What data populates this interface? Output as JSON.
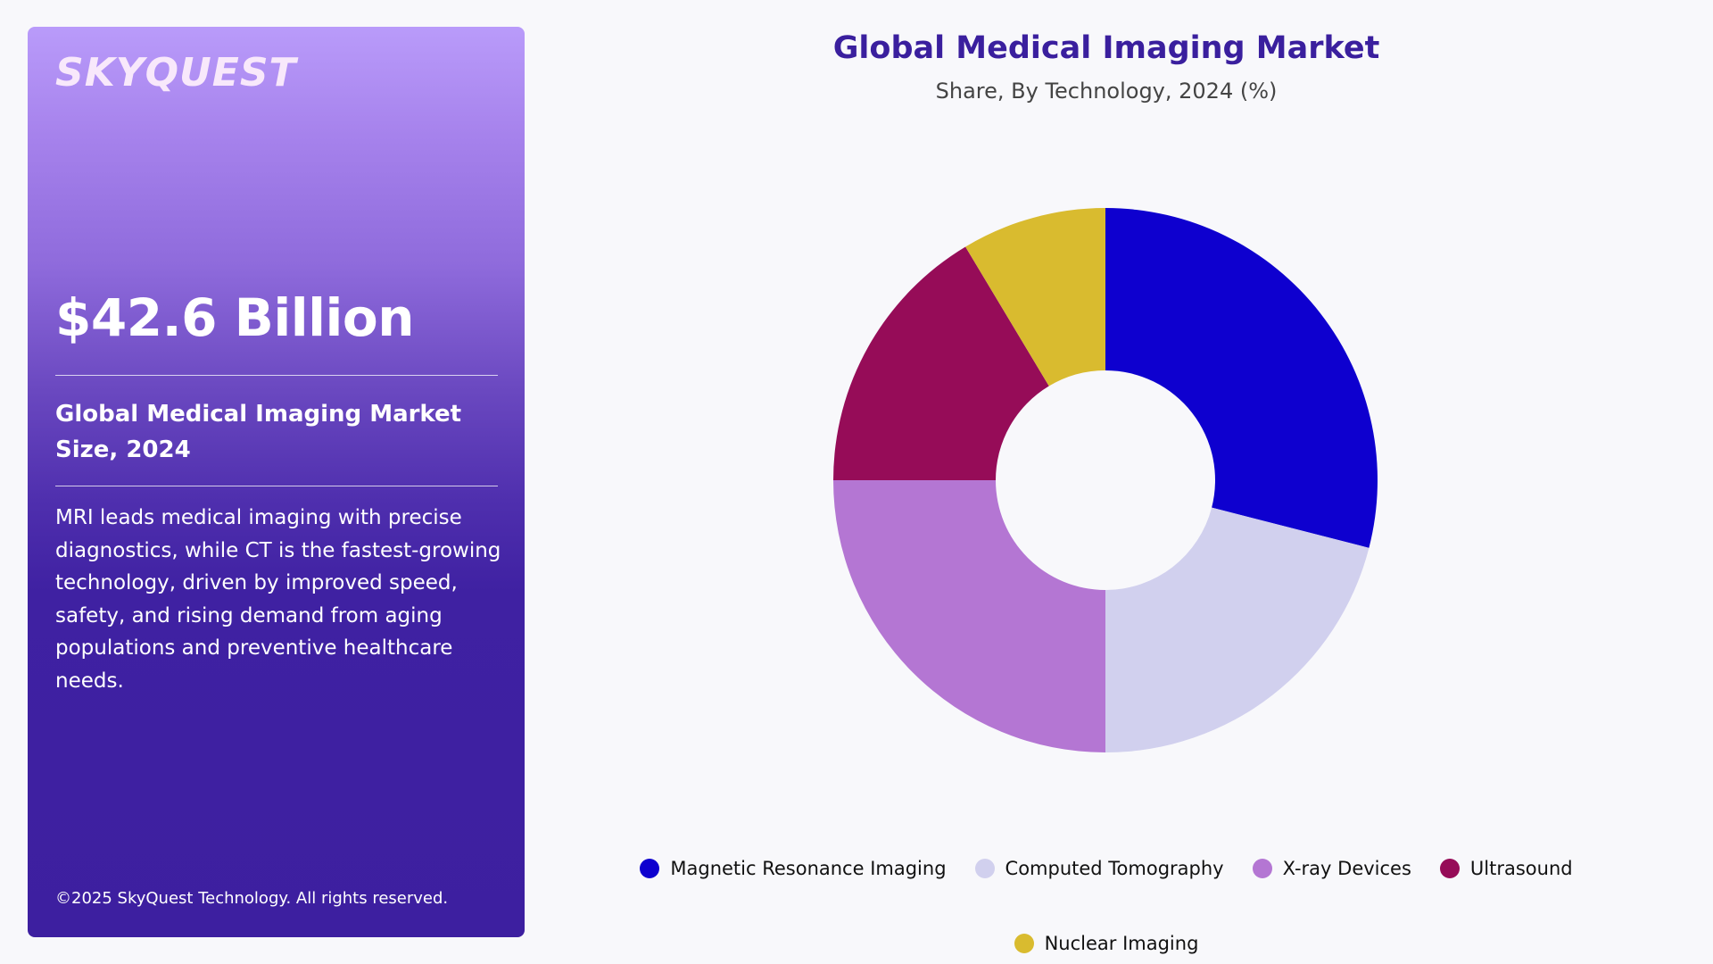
{
  "panel": {
    "logo": "SKYQUEST",
    "market_value": "$42.6 Billion",
    "market_label": "Global Medical Imaging Market Size, 2024",
    "description": "MRI leads medical imaging with precise diagnostics, while CT is the fastest-growing technology, driven by improved speed, safety, and rising demand from aging populations and preventive healthcare needs.",
    "footer": "©2025 SkyQuest Technology. All rights reserved."
  },
  "chart": {
    "title": "Global Medical Imaging Market",
    "subtitle": "Share, By Technology, 2024 (%)"
  },
  "legend": [
    {
      "label": "Magnetic Resonance Imaging",
      "color": "#0e00cf"
    },
    {
      "label": "Computed Tomography",
      "color": "#d1d0ee"
    },
    {
      "label": "X-ray Devices",
      "color": "#b476d3"
    },
    {
      "label": "Ultrasound",
      "color": "#960c58"
    },
    {
      "label": "Nuclear Imaging",
      "color": "#d9bb2f"
    }
  ],
  "chart_data": {
    "type": "pie",
    "variant": "donut",
    "title": "Global Medical Imaging Market",
    "subtitle": "Share, By Technology, 2024 (%)",
    "categories": [
      "Magnetic Resonance Imaging",
      "Computed Tomography",
      "X-ray Devices",
      "Ultrasound",
      "Nuclear Imaging"
    ],
    "values": [
      29.0,
      21.0,
      25.0,
      16.4,
      8.6
    ],
    "colors": [
      "#0e00cf",
      "#d1d0ee",
      "#b476d3",
      "#960c58",
      "#d9bb2f"
    ],
    "start_angle": "top (12 o'clock), clockwise",
    "data_labels": false,
    "legend_position": "bottom"
  }
}
